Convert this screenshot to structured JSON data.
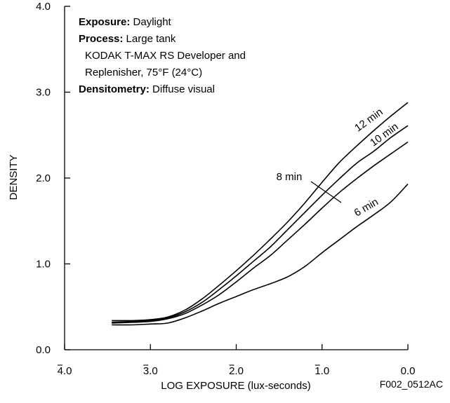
{
  "chart_data": {
    "type": "line",
    "xlabel": "LOG EXPOSURE (lux-seconds)",
    "ylabel": "DENSITY",
    "xlim": [
      -4.0,
      0.0
    ],
    "ylim": [
      0.0,
      4.0
    ],
    "x_ticks": [
      {
        "value": -4.0,
        "label": "4.0"
      },
      {
        "value": -3.0,
        "label": "3.0"
      },
      {
        "value": -2.0,
        "label": "2.0"
      },
      {
        "value": -1.0,
        "label": "1.0"
      },
      {
        "value": 0.0,
        "label": "0.0"
      }
    ],
    "y_ticks": [
      {
        "value": 0.0,
        "label": "0.0"
      },
      {
        "value": 1.0,
        "label": "1.0"
      },
      {
        "value": 2.0,
        "label": "2.0"
      },
      {
        "value": 3.0,
        "label": "3.0"
      },
      {
        "value": 4.0,
        "label": "4.0"
      }
    ],
    "info": [
      {
        "bold": "Exposure:",
        "text": " Daylight"
      },
      {
        "bold": "Process:",
        "text": " Large tank"
      },
      {
        "bold": "",
        "text": "KODAK T-MAX RS Developer and"
      },
      {
        "bold": "",
        "text": "Replenisher, 75°F (24°C)"
      },
      {
        "bold": "Densitometry:",
        "text": " Diffuse visual"
      }
    ],
    "series": [
      {
        "name": "12 min",
        "x": [
          -3.45,
          -3.2,
          -3.0,
          -2.8,
          -2.6,
          -2.4,
          -2.2,
          -2.0,
          -1.8,
          -1.6,
          -1.4,
          -1.2,
          -1.0,
          -0.8,
          -0.6,
          -0.4,
          -0.2,
          0.0
        ],
        "y": [
          0.34,
          0.34,
          0.35,
          0.38,
          0.46,
          0.59,
          0.75,
          0.92,
          1.1,
          1.29,
          1.49,
          1.71,
          1.95,
          2.18,
          2.37,
          2.55,
          2.72,
          2.88
        ]
      },
      {
        "name": "10 min",
        "x": [
          -3.45,
          -3.2,
          -3.0,
          -2.8,
          -2.6,
          -2.4,
          -2.2,
          -2.0,
          -1.8,
          -1.6,
          -1.4,
          -1.2,
          -1.0,
          -0.8,
          -0.6,
          -0.4,
          -0.2,
          0.0
        ],
        "y": [
          0.32,
          0.33,
          0.34,
          0.37,
          0.44,
          0.55,
          0.7,
          0.86,
          1.03,
          1.2,
          1.4,
          1.6,
          1.8,
          1.99,
          2.17,
          2.31,
          2.47,
          2.61
        ]
      },
      {
        "name": "8 min",
        "x": [
          -3.45,
          -3.2,
          -3.0,
          -2.8,
          -2.6,
          -2.4,
          -2.2,
          -2.0,
          -1.8,
          -1.6,
          -1.4,
          -1.2,
          -1.0,
          -0.8,
          -0.6,
          -0.4,
          -0.2,
          0.0
        ],
        "y": [
          0.31,
          0.32,
          0.33,
          0.36,
          0.42,
          0.52,
          0.64,
          0.79,
          0.95,
          1.1,
          1.28,
          1.46,
          1.65,
          1.83,
          1.99,
          2.14,
          2.28,
          2.42
        ]
      },
      {
        "name": "6 min",
        "x": [
          -3.45,
          -3.2,
          -3.0,
          -2.8,
          -2.6,
          -2.4,
          -2.2,
          -2.0,
          -1.8,
          -1.6,
          -1.4,
          -1.2,
          -1.0,
          -0.8,
          -0.6,
          -0.4,
          -0.2,
          0.0
        ],
        "y": [
          0.29,
          0.29,
          0.3,
          0.31,
          0.37,
          0.45,
          0.54,
          0.62,
          0.7,
          0.77,
          0.85,
          0.97,
          1.13,
          1.28,
          1.43,
          1.57,
          1.72,
          1.93
        ]
      }
    ],
    "figure_id": "F002_0512AC"
  }
}
